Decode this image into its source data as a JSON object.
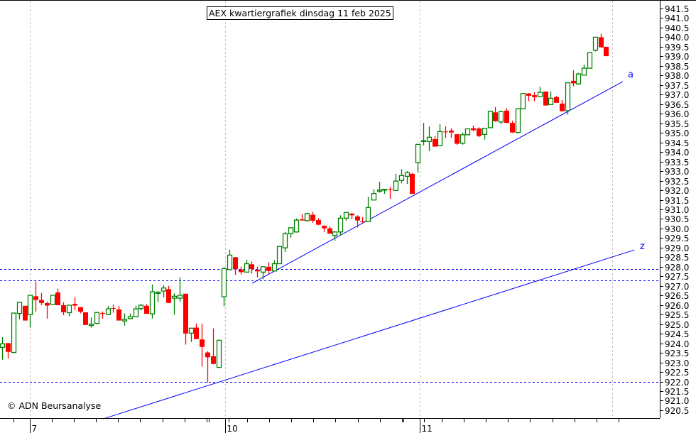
{
  "chart_data": {
    "type": "candlestick",
    "title": "AEX kwartiergrafiek dinsdag 11 feb 2025",
    "copyright": "© ADN Beursanalyse",
    "ylim": [
      920.5,
      941.5
    ],
    "y_ticks": [
      "941.5",
      "941.0",
      "940.5",
      "940.0",
      "939.5",
      "939.0",
      "938.5",
      "938.0",
      "937.5",
      "937.0",
      "936.5",
      "936.0",
      "935.5",
      "935.0",
      "934.5",
      "934.0",
      "933.5",
      "933.0",
      "932.5",
      "932.0",
      "931.5",
      "931.0",
      "930.5",
      "930.0",
      "929.5",
      "929.0",
      "928.5",
      "928.0",
      "927.5",
      "927.0",
      "926.5",
      "926.0",
      "925.5",
      "925.0",
      "924.5",
      "924.0",
      "923.5",
      "923.0",
      "922.5",
      "922.0",
      "921.5",
      "921.0",
      "920.5"
    ],
    "x_day_labels": [
      {
        "label": "7",
        "bar": 5
      },
      {
        "label": "10",
        "bar": 40.2
      },
      {
        "label": "11",
        "bar": 75.3
      }
    ],
    "x_gridline_bars": [
      5,
      40.2,
      75.3,
      110.1
    ],
    "horizontal_levels": [
      927.9,
      927.3,
      922.0
    ],
    "trendlines": [
      {
        "label": "a",
        "from": {
          "bar": 45.1,
          "value": 927.14
        },
        "to": {
          "bar": 112.0,
          "value": 937.68
        }
      },
      {
        "label": "z",
        "from": {
          "bar": 18.2,
          "value": 920.05
        },
        "to": {
          "bar": 114.1,
          "value": 928.88
        }
      }
    ],
    "ohlc_fields": [
      "open",
      "high",
      "low",
      "close"
    ],
    "candles": [
      [
        923.79,
        924.32,
        923.14,
        923.97
      ],
      [
        924.01,
        924.01,
        923.21,
        923.55
      ],
      [
        923.52,
        925.58,
        923.52,
        925.58
      ],
      [
        925.56,
        926.14,
        925.25,
        926.14
      ],
      [
        925.96,
        925.96,
        925.19,
        925.19
      ],
      [
        925.5,
        926.51,
        924.82,
        926.51
      ],
      [
        926.46,
        927.23,
        925.66,
        926.26
      ],
      [
        926.26,
        926.63,
        925.99,
        926.11
      ],
      [
        926.1,
        926.18,
        925.29,
        925.97
      ],
      [
        926.04,
        926.51,
        926.04,
        926.51
      ],
      [
        926.66,
        926.86,
        925.99,
        925.99
      ],
      [
        925.99,
        926.14,
        925.47,
        925.62
      ],
      [
        925.6,
        925.99,
        925.41,
        925.99
      ],
      [
        926.06,
        926.4,
        925.74,
        925.97
      ],
      [
        925.89,
        925.89,
        925.56,
        925.65
      ],
      [
        925.62,
        925.62,
        924.96,
        924.96
      ],
      [
        924.93,
        925.35,
        924.82,
        925.0
      ],
      [
        925.04,
        925.61,
        925.0,
        925.61
      ],
      [
        925.58,
        925.66,
        925.29,
        925.54
      ],
      [
        925.51,
        925.96,
        925.47,
        925.8
      ],
      [
        925.84,
        926.02,
        925.6,
        925.81
      ],
      [
        925.77,
        925.96,
        925.19,
        925.19
      ],
      [
        925.17,
        925.56,
        924.92,
        925.25
      ],
      [
        925.29,
        925.56,
        925.29,
        925.39
      ],
      [
        925.39,
        925.96,
        925.39,
        925.8
      ],
      [
        925.81,
        926.05,
        925.72,
        925.99
      ],
      [
        925.96,
        926.05,
        925.54,
        925.54
      ],
      [
        925.54,
        927.07,
        925.29,
        926.69
      ],
      [
        926.61,
        926.73,
        926.15,
        926.67
      ],
      [
        926.73,
        927.04,
        926.4,
        926.89
      ],
      [
        926.83,
        927.0,
        926.11,
        926.11
      ],
      [
        926.36,
        926.61,
        925.5,
        926.46
      ],
      [
        926.36,
        927.44,
        926.18,
        926.51
      ],
      [
        926.59,
        926.59,
        923.93,
        924.51
      ],
      [
        924.53,
        924.79,
        924.07,
        924.79
      ],
      [
        924.82,
        925.03,
        924.22,
        924.22
      ],
      [
        924.2,
        925.03,
        922.78,
        923.81
      ],
      [
        923.52,
        923.58,
        921.94,
        923.27
      ],
      [
        923.32,
        924.78,
        922.9,
        922.92
      ],
      [
        922.74,
        924.16,
        922.74,
        924.16
      ],
      [
        926.43,
        927.97,
        925.93,
        927.91
      ],
      [
        927.85,
        928.89,
        927.85,
        928.61
      ],
      [
        928.5,
        928.5,
        927.58,
        927.88
      ],
      [
        927.85,
        928.01,
        927.6,
        927.72
      ],
      [
        927.72,
        928.37,
        927.72,
        928.16
      ],
      [
        928.13,
        928.28,
        927.64,
        927.88
      ],
      [
        927.85,
        928.0,
        927.45,
        927.76
      ],
      [
        927.72,
        928.0,
        927.35,
        928.0
      ],
      [
        928.0,
        928.24,
        927.64,
        927.78
      ],
      [
        927.78,
        928.34,
        927.78,
        928.16
      ],
      [
        928.16,
        929.06,
        928.16,
        929.06
      ],
      [
        928.99,
        929.82,
        928.77,
        929.73
      ],
      [
        929.73,
        930.04,
        929.52,
        930.04
      ],
      [
        929.82,
        930.53,
        929.79,
        930.44
      ],
      [
        930.48,
        930.75,
        930.42,
        930.42
      ],
      [
        930.41,
        930.83,
        930.36,
        930.78
      ],
      [
        930.72,
        930.88,
        930.3,
        930.41
      ],
      [
        930.44,
        930.54,
        930.17,
        930.2
      ],
      [
        930.14,
        930.17,
        929.82,
        930.01
      ],
      [
        930.01,
        930.1,
        929.73,
        929.73
      ],
      [
        929.64,
        929.86,
        929.36,
        929.82
      ],
      [
        929.82,
        930.69,
        929.64,
        930.54
      ],
      [
        930.54,
        930.84,
        930.42,
        930.84
      ],
      [
        930.78,
        930.82,
        930.48,
        930.69
      ],
      [
        930.63,
        930.69,
        930.05,
        930.42
      ],
      [
        930.38,
        930.6,
        930.3,
        930.36
      ],
      [
        930.36,
        931.66,
        930.36,
        931.1
      ],
      [
        931.49,
        932.05,
        931.49,
        931.83
      ],
      [
        931.95,
        932.45,
        931.87,
        932.01
      ],
      [
        932.01,
        932.07,
        931.81,
        932.05
      ],
      [
        932.05,
        932.18,
        931.56,
        932.03
      ],
      [
        931.99,
        932.86,
        931.99,
        932.48
      ],
      [
        932.51,
        933.1,
        932.36,
        932.77
      ],
      [
        932.73,
        933.0,
        932.33,
        932.92
      ],
      [
        932.86,
        932.9,
        931.81,
        931.81
      ],
      [
        933.44,
        934.4,
        932.92,
        934.4
      ],
      [
        934.55,
        935.52,
        934.34,
        934.59
      ],
      [
        934.55,
        935.33,
        934.05,
        934.77
      ],
      [
        934.67,
        934.83,
        934.28,
        934.28
      ],
      [
        934.33,
        935.45,
        934.33,
        935.07
      ],
      [
        935.07,
        935.35,
        934.74,
        935.04
      ],
      [
        935.12,
        935.24,
        934.74,
        935.02
      ],
      [
        934.93,
        934.93,
        934.38,
        934.43
      ],
      [
        934.46,
        935.02,
        934.38,
        934.9
      ],
      [
        934.9,
        935.21,
        934.9,
        935.21
      ],
      [
        935.24,
        935.39,
        935.08,
        935.14
      ],
      [
        935.23,
        935.29,
        934.78,
        934.83
      ],
      [
        934.92,
        935.24,
        934.65,
        935.24
      ],
      [
        935.27,
        936.16,
        935.27,
        936.13
      ],
      [
        936.07,
        936.35,
        935.58,
        935.61
      ],
      [
        935.57,
        936.16,
        935.45,
        936.11
      ],
      [
        936.16,
        936.29,
        935.52,
        935.52
      ],
      [
        935.52,
        935.64,
        935.0,
        935.02
      ],
      [
        935.02,
        936.26,
        935.02,
        936.26
      ],
      [
        936.26,
        937.08,
        936.26,
        937.06
      ],
      [
        937.06,
        937.08,
        936.65,
        936.94
      ],
      [
        936.97,
        937.12,
        936.65,
        936.87
      ],
      [
        936.9,
        937.41,
        936.9,
        937.12
      ],
      [
        937.16,
        937.16,
        936.43,
        936.43
      ],
      [
        936.48,
        937.16,
        936.48,
        936.81
      ],
      [
        936.87,
        936.93,
        936.57,
        936.57
      ],
      [
        936.53,
        936.71,
        936.13,
        936.13
      ],
      [
        936.16,
        937.62,
        935.95,
        937.62
      ],
      [
        937.72,
        938.27,
        937.43,
        937.59
      ],
      [
        937.56,
        938.14,
        937.52,
        938.08
      ],
      [
        938.02,
        938.57,
        938.02,
        938.38
      ],
      [
        938.38,
        939.2,
        938.38,
        939.2
      ],
      [
        939.32,
        940.0,
        939.25,
        940.0
      ],
      [
        940.0,
        940.18,
        939.47,
        939.47
      ],
      [
        939.5,
        939.5,
        939.01,
        939.01
      ]
    ],
    "colors": {
      "up": "#008000",
      "down": "#ff0000",
      "lines": "#0000ff",
      "grid": "#c0c0c0"
    }
  }
}
